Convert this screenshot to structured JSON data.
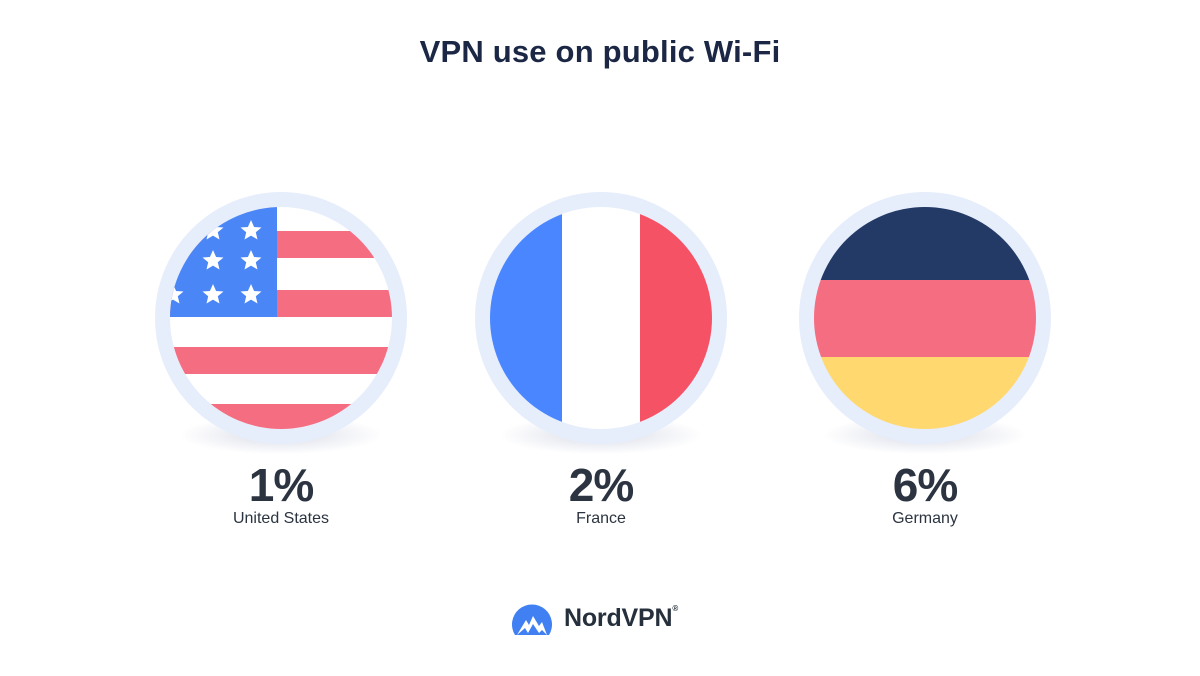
{
  "title": "VPN use on public Wi-Fi",
  "stats": [
    {
      "percent": "1%",
      "value": 1,
      "country": "United States",
      "flag_icon": "us-flag-icon"
    },
    {
      "percent": "2%",
      "value": 2,
      "country": "France",
      "flag_icon": "france-flag-icon"
    },
    {
      "percent": "6%",
      "value": 6,
      "country": "Germany",
      "flag_icon": "germany-flag-icon"
    }
  ],
  "brand": {
    "name": "NordVPN",
    "reg_mark": "®",
    "logo_icon": "nordvpn-mountain-logo-icon"
  },
  "colors": {
    "title": "#1b2744",
    "ring": "#e6edfb",
    "us_blue": "#4a86f5",
    "us_red": "#f46d80",
    "fr_blue": "#4a86ff",
    "fr_white": "#ffffff",
    "fr_red": "#f55266",
    "de_black": "#233a66",
    "de_red": "#f56d80",
    "de_gold": "#ffd870",
    "brand_blue": "#4080f2"
  }
}
